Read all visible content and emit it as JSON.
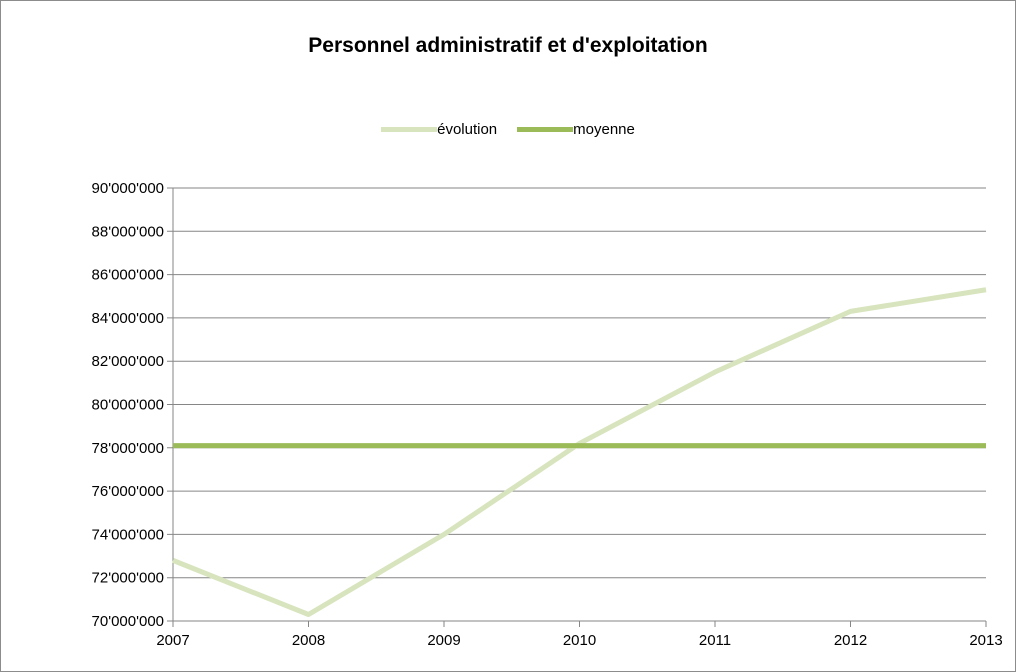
{
  "chart_data": {
    "type": "line",
    "title": "Personnel administratif et d'exploitation",
    "xlabel": "",
    "ylabel": "",
    "x": [
      "2007",
      "2008",
      "2009",
      "2010",
      "2011",
      "2012",
      "2013"
    ],
    "ylim": [
      70000000,
      90000000
    ],
    "ytick_labels": [
      "70'000'000",
      "72'000'000",
      "74'000'000",
      "76'000'000",
      "78'000'000",
      "80'000'000",
      "82'000'000",
      "84'000'000",
      "86'000'000",
      "88'000'000",
      "90'000'000"
    ],
    "grid": true,
    "legend_position": "top",
    "series": [
      {
        "name": "évolution",
        "color": "#d7e4bd",
        "values": [
          72800000,
          70300000,
          74000000,
          78200000,
          81500000,
          84300000,
          85300000
        ]
      },
      {
        "name": "moyenne",
        "color": "#9bbb59",
        "values": [
          78100000,
          78100000,
          78100000,
          78100000,
          78100000,
          78100000,
          78100000
        ]
      }
    ]
  }
}
